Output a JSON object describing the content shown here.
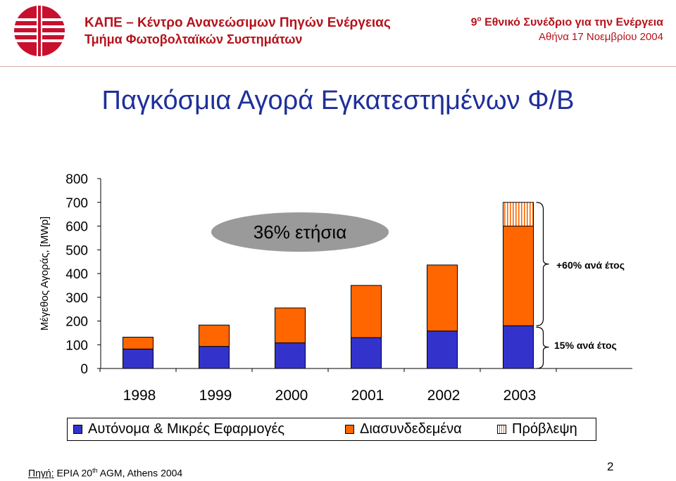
{
  "header": {
    "org_name": "ΚΑΠΕ – Κέντρο Ανανεώσιμων Πηγών Ενέργειας",
    "org_dept": "Τμήμα Φωτοβολταϊκών Συστημάτων",
    "conf_num": "9",
    "conf_sup": "ο",
    "conf_name": " Εθνικό Συνέδριο για την Ενέργεια",
    "conf_date": "Αθήνα 17 Νοεμβρίου 2004"
  },
  "slide_title": "Παγκόσμια Αγορά Εγκατεστημένων Φ/Β",
  "chart_data": {
    "type": "bar",
    "stacked": true,
    "categories": [
      "1998",
      "1999",
      "2000",
      "2001",
      "2002",
      "2003"
    ],
    "series": [
      {
        "name": "Αυτόνομα & Μικρές Εφαρμογές",
        "values": [
          82,
          93,
          108,
          130,
          158,
          180
        ],
        "color": "#3333cc"
      },
      {
        "name": "Διασυνδεδεμένα",
        "values": [
          50,
          90,
          147,
          220,
          278,
          420
        ],
        "color": "#ff6600"
      },
      {
        "name": "Πρόβλεψη",
        "values": [
          0,
          0,
          0,
          0,
          0,
          100
        ],
        "color": "#ff6600",
        "pattern": "hatched"
      }
    ],
    "ylabel": "Μέγεθος Αγοράς, [MWp]",
    "ylim": [
      0,
      800
    ],
    "yticks": [
      "0",
      "100",
      "200",
      "300",
      "400",
      "500",
      "600",
      "700",
      "800"
    ],
    "annotations": {
      "growth_bubble": "36% ετήσια",
      "upper_bracket": "+60% ανά έτος",
      "lower_bracket": "15% ανά έτος"
    },
    "legend_position": "bottom"
  },
  "footer": {
    "source_label": "Πηγή:",
    "source_text_a": " EPIA 20",
    "source_sup": "th",
    "source_text_b": " AGM, Athens 2004",
    "page_number": "2"
  }
}
